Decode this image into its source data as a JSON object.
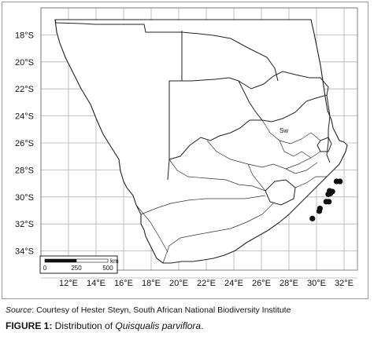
{
  "map": {
    "lat_labels": [
      "18°S",
      "20°S",
      "22°S",
      "24°S",
      "26°S",
      "28°S",
      "30°S",
      "32°S",
      "34°S"
    ],
    "lon_labels": [
      "12°E",
      "14°E",
      "16°E",
      "18°E",
      "20°E",
      "22°E",
      "24°E",
      "26°E",
      "28°E",
      "30°E",
      "32°E"
    ],
    "lat_values": [
      -18,
      -20,
      -22,
      -24,
      -26,
      -28,
      -30,
      -32,
      -34
    ],
    "lon_values": [
      12,
      14,
      16,
      18,
      20,
      22,
      24,
      26,
      28,
      30,
      32
    ],
    "scale_bar": {
      "unit": "km",
      "ticks": [
        "0",
        "250",
        "500"
      ]
    },
    "inset_label": "Sw",
    "occurrence_points": [
      {
        "lon": 31.45,
        "lat": -28.85
      },
      {
        "lon": 31.7,
        "lat": -28.85
      },
      {
        "lon": 30.95,
        "lat": -29.55
      },
      {
        "lon": 31.15,
        "lat": -29.6
      },
      {
        "lon": 30.85,
        "lat": -29.8
      },
      {
        "lon": 31.0,
        "lat": -29.75
      },
      {
        "lon": 30.7,
        "lat": -30.35
      },
      {
        "lon": 30.9,
        "lat": -30.35
      },
      {
        "lon": 30.25,
        "lat": -30.85
      },
      {
        "lon": 30.2,
        "lat": -31.05
      },
      {
        "lon": 29.7,
        "lat": -31.6
      }
    ],
    "colors": {
      "land": "#ffffff",
      "border": "#222222",
      "grid": "#b0b0b0",
      "point": "#111111"
    }
  },
  "caption": {
    "source_label": "Source",
    "source_text": ": Courtesy of Hester Steyn, South African National Biodiversity Institute",
    "figure_label": "FIGURE 1:",
    "figure_text": " Distribution of ",
    "species": "Quisqualis parviflora",
    "period": "."
  }
}
